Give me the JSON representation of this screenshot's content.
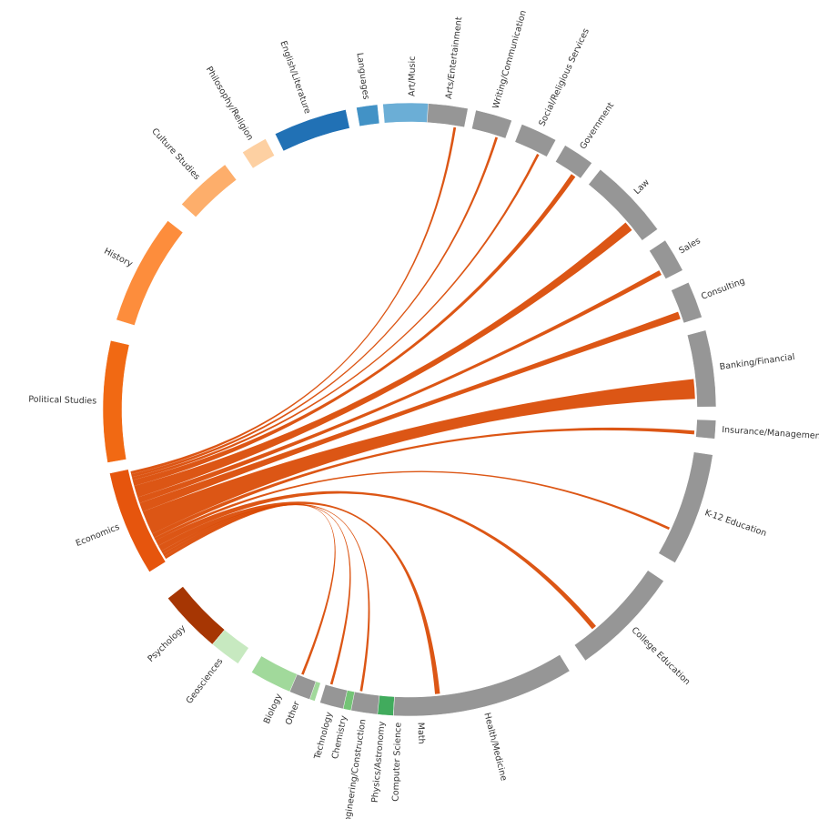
{
  "chart_data": {
    "type": "chord",
    "title": "",
    "source": "Economics",
    "colors": {
      "career": "#969696",
      "flow": "#d94801"
    },
    "majors": [
      {
        "name": "Political Studies",
        "color": "#f16913"
      },
      {
        "name": "History",
        "color": "#fd8d3c"
      },
      {
        "name": "Culture Studies",
        "color": "#fdae6b"
      },
      {
        "name": "Philosophy/Religion",
        "color": "#fdd0a2"
      },
      {
        "name": "English/Literature",
        "color": "#2171b5"
      },
      {
        "name": "Languages",
        "color": "#4292c6"
      },
      {
        "name": "Art/Music",
        "color": "#6baed6"
      },
      {
        "name": "Economics",
        "color": "#e6550d"
      },
      {
        "name": "Psychology",
        "color": "#a63603"
      },
      {
        "name": "Geosciences",
        "color": "#c7e9c0"
      },
      {
        "name": "Biology",
        "color": "#a1d99b"
      },
      {
        "name": "Chemistry",
        "color": "#74c476"
      },
      {
        "name": "Physics/Astronomy",
        "color": "#41ab5d"
      },
      {
        "name": "Computer Science",
        "color": "#238b45"
      },
      {
        "name": "Math",
        "color": "#006d2c"
      }
    ],
    "careers": [
      {
        "name": "Arts/Entertainment",
        "flow": 1
      },
      {
        "name": "Writing/Communication",
        "flow": 1
      },
      {
        "name": "Social/Religious Services",
        "flow": 1
      },
      {
        "name": "Government",
        "flow": 2
      },
      {
        "name": "Law",
        "flow": 4
      },
      {
        "name": "Sales",
        "flow": 2
      },
      {
        "name": "Consulting",
        "flow": 3
      },
      {
        "name": "Banking/Financial",
        "flow": 8
      },
      {
        "name": "Insurance/Management",
        "flow": 1.5
      },
      {
        "name": "K-12 Education",
        "flow": 1
      },
      {
        "name": "College Education",
        "flow": 2
      },
      {
        "name": "Health/Medicine",
        "flow": 2
      },
      {
        "name": "Engineering/Construction",
        "flow": 1
      },
      {
        "name": "Technology",
        "flow": 1
      },
      {
        "name": "Other",
        "flow": 1
      }
    ]
  }
}
